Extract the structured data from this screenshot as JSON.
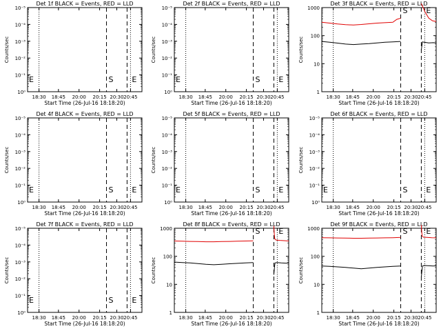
{
  "figure": {
    "xlabel": "Start Time (26-Jul-16 18:18:20)",
    "ylabel": "Counts/sec",
    "marker_s": "S",
    "marker_e": "E"
  },
  "colors": {
    "events": "#000000",
    "lld": "#e00000",
    "axis": "#000000"
  },
  "chart_data": [
    {
      "type": "line",
      "title": "Det 1f BLACK = Events, RED = LLD",
      "yscale": "log",
      "ytick_labels": [
        "10⁰",
        "10⁻¹",
        "10⁻²",
        "10⁻³",
        "10⁻⁴",
        "10⁻⁵"
      ],
      "xtick_labels": [
        "18:30",
        "18:45",
        "20:00",
        "20:15",
        "20:30",
        "20:45"
      ],
      "markers": {
        "S": "20:18",
        "E": "20:35"
      },
      "series": []
    },
    {
      "type": "line",
      "title": "Det 2f BLACK = Events, RED = LLD",
      "yscale": "log",
      "ytick_labels": [
        "10⁰",
        "10⁻¹",
        "10⁻²",
        "10⁻³",
        "10⁻⁴",
        "10⁻⁵"
      ],
      "xtick_labels": [
        "18:30",
        "18:45",
        "20:00",
        "20:15",
        "20:30",
        "20:45"
      ],
      "markers": {
        "S": "20:18",
        "E": "20:35"
      },
      "series": []
    },
    {
      "type": "line",
      "title": "Det 3f BLACK = Events, RED = LLD",
      "yscale": "log",
      "ylim": [
        1,
        1000
      ],
      "ytick_labels": [
        "1",
        "10",
        "100",
        "1000"
      ],
      "xtick_labels": [
        "18:30",
        "18:45",
        "20:00",
        "20:15",
        "20:30",
        "20:45"
      ],
      "markers": {
        "S": "20:18",
        "E": "20:35"
      },
      "series": [
        {
          "color": "red",
          "segments": [
            {
              "x": [
                0.0,
                0.1,
                0.2,
                0.3,
                0.4,
                0.5,
                0.6,
                0.7,
                0.8,
                0.9,
                0.95,
                1.0
              ],
              "y": [
                300,
                280,
                260,
                245,
                240,
                250,
                265,
                280,
                290,
                300,
                380,
                420
              ]
            },
            {
              "x": [
                0.0,
                0.25,
                0.5,
                0.75,
                1.0
              ],
              "y": [
                1400,
                700,
                420,
                340,
                320
              ]
            }
          ]
        },
        {
          "color": "black",
          "segments": [
            {
              "x": [
                0.0,
                0.1,
                0.2,
                0.3,
                0.4,
                0.5,
                0.6,
                0.7,
                0.8,
                0.9,
                1.0
              ],
              "y": [
                62,
                58,
                54,
                50,
                48,
                50,
                52,
                55,
                58,
                60,
                62
              ]
            },
            {
              "x": [
                0.0,
                0.04,
                0.08,
                0.2,
                0.5,
                0.8,
                1.0
              ],
              "y": [
                30,
                45,
                60,
                58,
                55,
                56,
                55
              ]
            }
          ]
        }
      ]
    },
    {
      "type": "line",
      "title": "Det 4f BLACK = Events, RED = LLD",
      "yscale": "log",
      "ytick_labels": [
        "10⁰",
        "10⁻¹",
        "10⁻²",
        "10⁻³",
        "10⁻⁴",
        "10⁻⁵"
      ],
      "xtick_labels": [
        "18:30",
        "18:45",
        "20:00",
        "20:15",
        "20:30",
        "20:45"
      ],
      "markers": {
        "S": "20:18",
        "E": "20:35"
      },
      "series": []
    },
    {
      "type": "line",
      "title": "Det 5f BLACK = Events, RED = LLD",
      "yscale": "log",
      "ytick_labels": [
        "10⁰",
        "10⁻¹",
        "10⁻²",
        "10⁻³",
        "10⁻⁴",
        "10⁻⁵"
      ],
      "xtick_labels": [
        "18:30",
        "18:45",
        "20:00",
        "20:15",
        "20:30",
        "20:45"
      ],
      "markers": {
        "S": "20:18",
        "E": "20:35"
      },
      "series": []
    },
    {
      "type": "line",
      "title": "Det 6f BLACK = Events, RED = LLD",
      "yscale": "log",
      "ytick_labels": [
        "10⁰",
        "10⁻¹",
        "10⁻²",
        "10⁻³",
        "10⁻⁴",
        "10⁻⁵"
      ],
      "xtick_labels": [
        "18:30",
        "18:45",
        "20:00",
        "20:15",
        "20:30",
        "20:45"
      ],
      "markers": {
        "S": "20:18",
        "E": "20:35"
      },
      "series": []
    },
    {
      "type": "line",
      "title": "Det 7f BLACK = Events, RED = LLD",
      "yscale": "log",
      "ytick_labels": [
        "10⁰",
        "10⁻¹",
        "10⁻²",
        "10⁻³",
        "10⁻⁴",
        "10⁻⁵"
      ],
      "xtick_labels": [
        "18:30",
        "18:45",
        "20:00",
        "20:15",
        "20:30",
        "20:45"
      ],
      "markers": {
        "S": "20:18",
        "E": "20:35"
      },
      "series": []
    },
    {
      "type": "line",
      "title": "Det 8f BLACK = Events, RED = LLD",
      "yscale": "log",
      "ylim": [
        1,
        1000
      ],
      "ytick_labels": [
        "1",
        "10",
        "100",
        "1000"
      ],
      "xtick_labels": [
        "18:30",
        "18:45",
        "20:00",
        "20:15",
        "20:30",
        "20:45"
      ],
      "markers": {
        "S": "20:18",
        "E": "20:35"
      },
      "series": [
        {
          "color": "red",
          "segments": [
            {
              "x": [
                0.0,
                0.1,
                0.2,
                0.3,
                0.4,
                0.5,
                0.6,
                0.7,
                0.8,
                0.9,
                1.0
              ],
              "y": [
                350,
                345,
                340,
                335,
                330,
                330,
                335,
                340,
                345,
                350,
                355
              ]
            },
            {
              "x": [
                0.0,
                0.03,
                0.06,
                0.15,
                0.4,
                0.7,
                1.0
              ],
              "y": [
                1200,
                600,
                420,
                380,
                370,
                360,
                350
              ]
            }
          ]
        },
        {
          "color": "black",
          "segments": [
            {
              "x": [
                0.0,
                0.1,
                0.2,
                0.3,
                0.4,
                0.5,
                0.6,
                0.7,
                0.8,
                0.9,
                1.0
              ],
              "y": [
                62,
                60,
                58,
                55,
                52,
                50,
                52,
                54,
                56,
                58,
                60
              ]
            },
            {
              "x": [
                0.0,
                0.04,
                0.08,
                0.2,
                0.5,
                0.8,
                1.0
              ],
              "y": [
                22,
                40,
                58,
                60,
                58,
                57,
                58
              ]
            }
          ]
        }
      ]
    },
    {
      "type": "line",
      "title": "Det 9f BLACK = Events, RED = LLD",
      "yscale": "log",
      "ylim": [
        1,
        1000
      ],
      "ytick_labels": [
        "1",
        "10",
        "100",
        "1000"
      ],
      "xtick_labels": [
        "18:30",
        "18:45",
        "20:00",
        "20:15",
        "20:30",
        "20:45"
      ],
      "markers": {
        "S": "20:18",
        "E": "20:35"
      },
      "series": [
        {
          "color": "red",
          "segments": [
            {
              "x": [
                0.0,
                0.1,
                0.2,
                0.3,
                0.4,
                0.5,
                0.6,
                0.7,
                0.8,
                0.9,
                1.0
              ],
              "y": [
                460,
                455,
                450,
                445,
                440,
                440,
                445,
                450,
                455,
                460,
                470
              ]
            },
            {
              "x": [
                0.0,
                0.03,
                0.06,
                0.15,
                0.4,
                0.7,
                1.0
              ],
              "y": [
                1300,
                700,
                520,
                480,
                470,
                460,
                455
              ]
            }
          ]
        },
        {
          "color": "black",
          "segments": [
            {
              "x": [
                0.0,
                0.1,
                0.2,
                0.3,
                0.4,
                0.5,
                0.6,
                0.7,
                0.8,
                0.9,
                1.0
              ],
              "y": [
                45,
                44,
                42,
                40,
                38,
                36,
                38,
                40,
                42,
                44,
                45
              ]
            },
            {
              "x": [
                0.0,
                0.04,
                0.08,
                0.2,
                0.5,
                0.8,
                1.0
              ],
              "y": [
                18,
                30,
                45,
                47,
                46,
                45,
                46
              ]
            }
          ]
        }
      ]
    }
  ]
}
